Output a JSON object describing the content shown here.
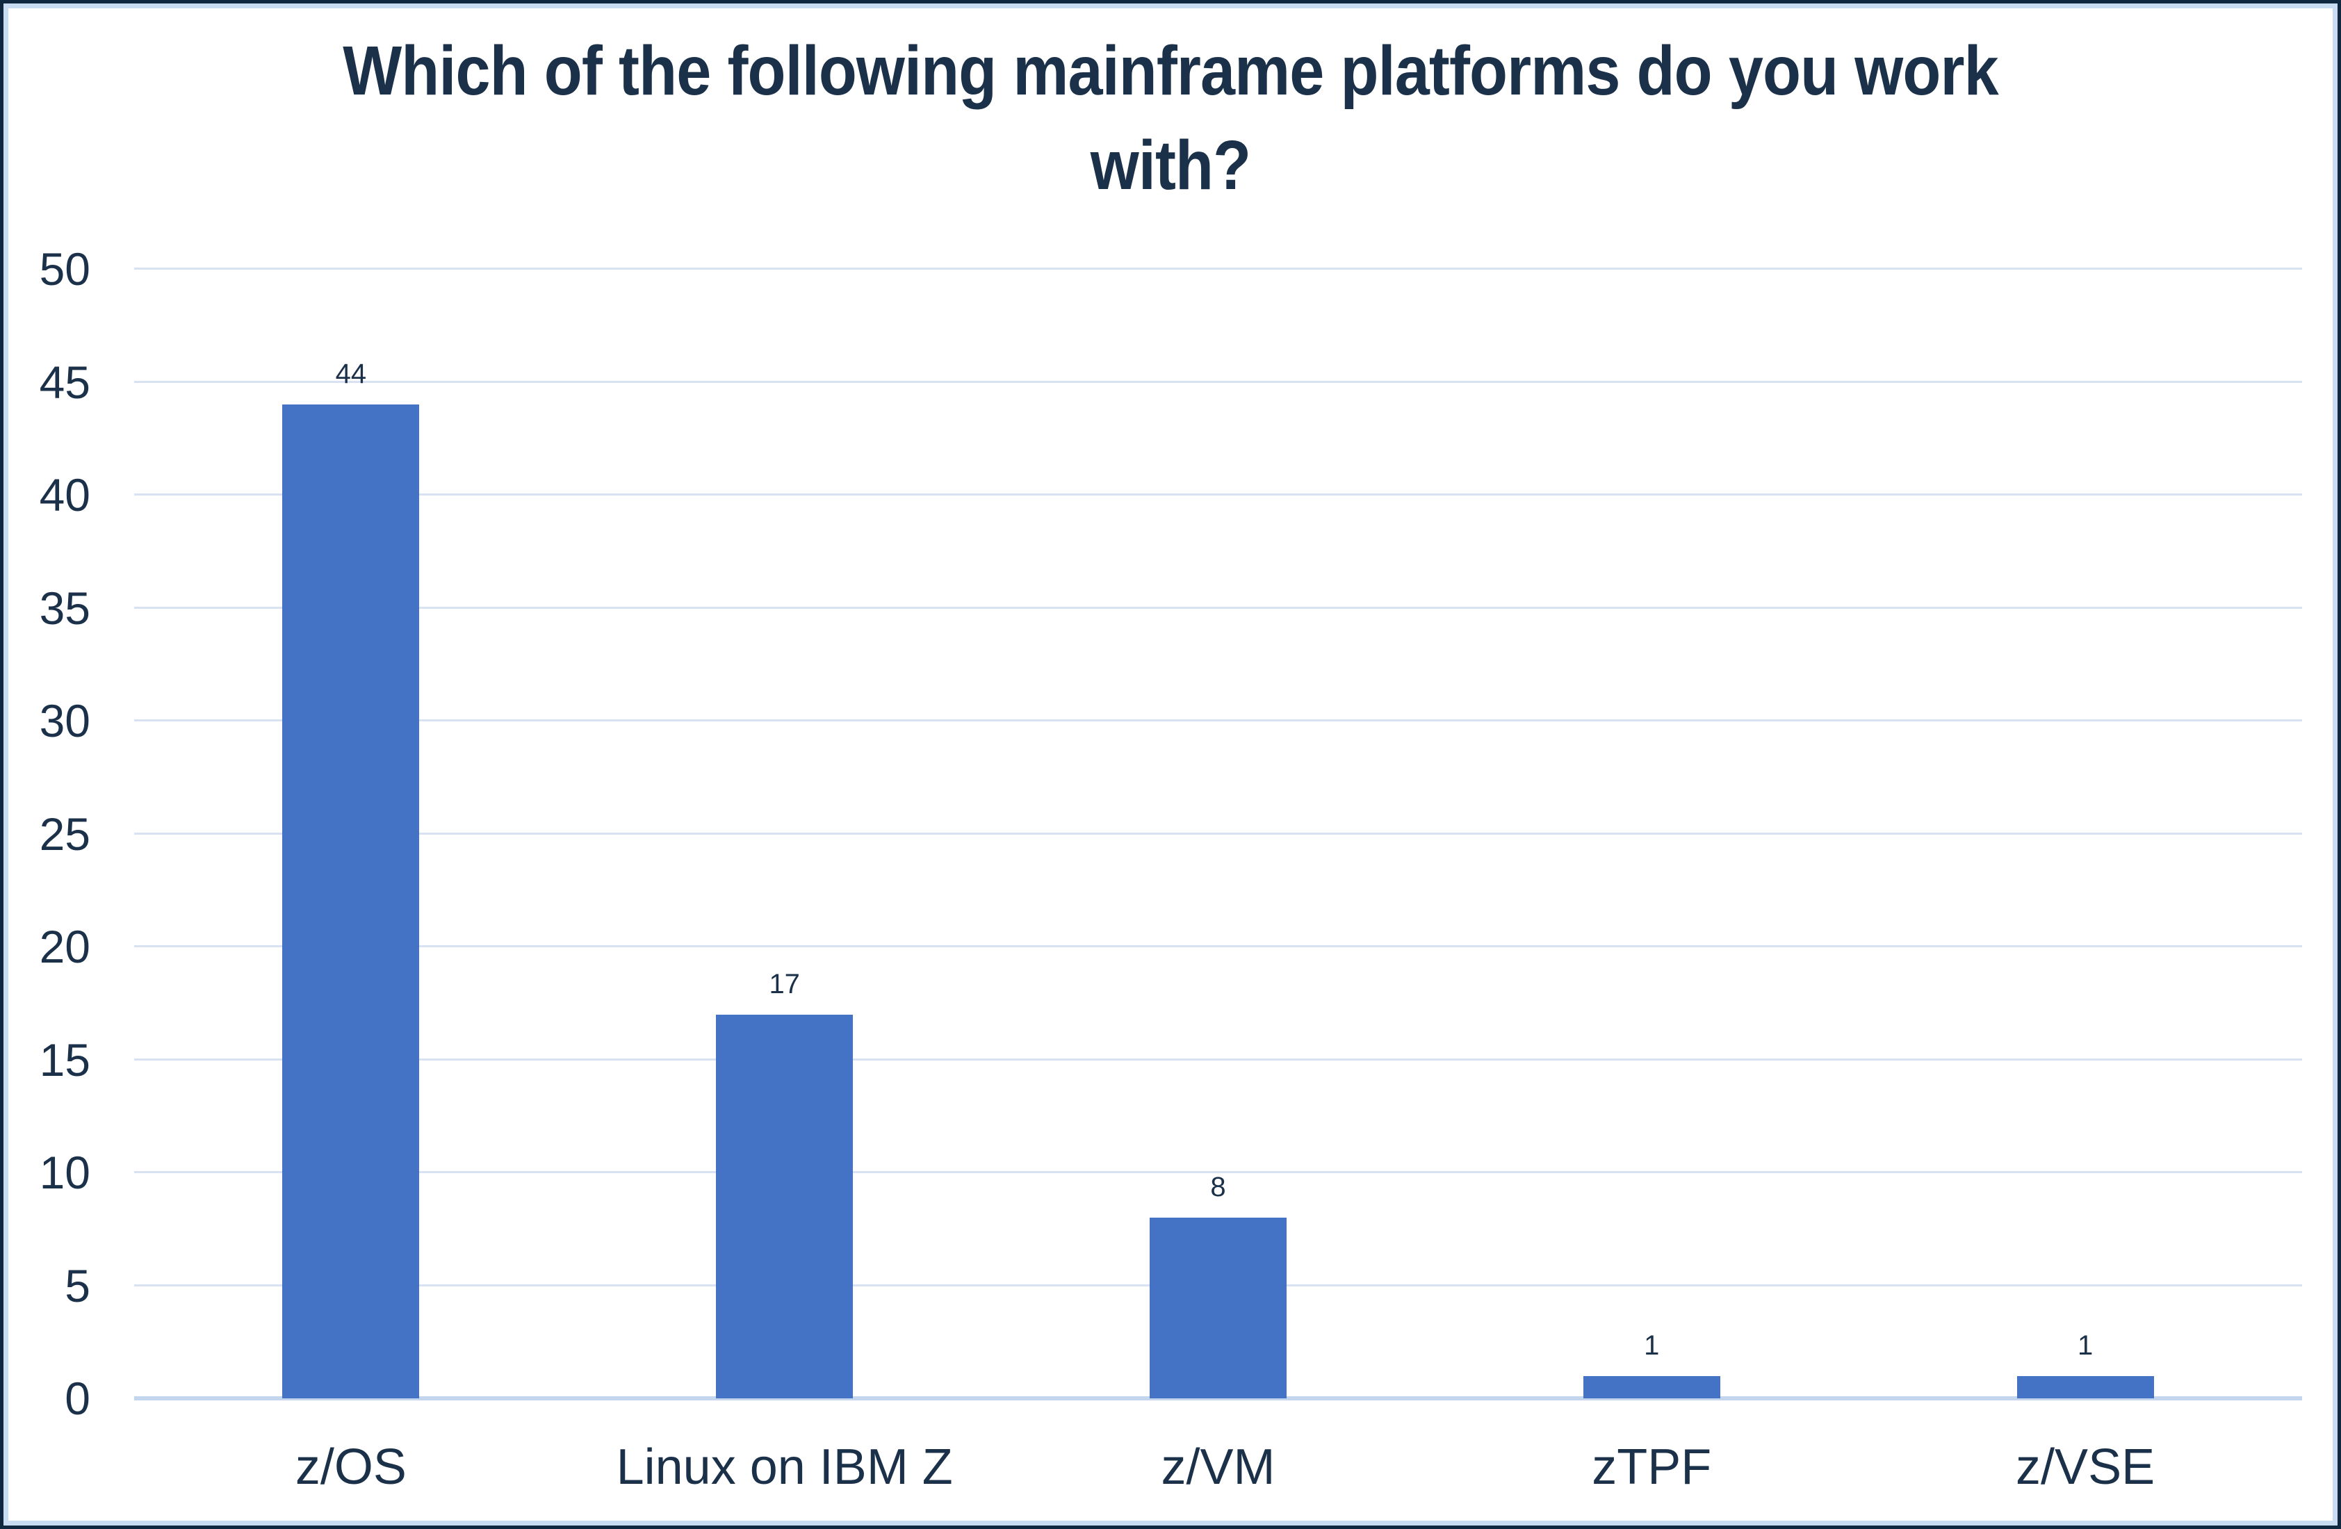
{
  "title": {
    "lines": [
      "Which of the following mainframe platforms do you work",
      "with?"
    ]
  },
  "chart_data": {
    "type": "bar",
    "title": "Which of the following mainframe platforms do you work with?",
    "categories": [
      "z/OS",
      "Linux on IBM Z",
      "z/VM",
      "zTPF",
      "z/VSE"
    ],
    "values": [
      44,
      17,
      8,
      1,
      1
    ],
    "data_labels": [
      "44",
      "17",
      "8",
      "1",
      "1"
    ],
    "xlabel": "",
    "ylabel": "",
    "ylim": [
      0,
      50
    ],
    "yticks": [
      0,
      5,
      10,
      15,
      20,
      25,
      30,
      35,
      40,
      45,
      50
    ],
    "grid": "horizontal",
    "legend_position": "none",
    "colors": {
      "bar": "#4472C4",
      "gridline": "#D9E2F3",
      "axis_line": "#C3D6EE",
      "text": "#1B3049",
      "frame_outer": "#112940",
      "frame_inner": "#C9DCF2",
      "background": "#FFFFFF"
    }
  }
}
